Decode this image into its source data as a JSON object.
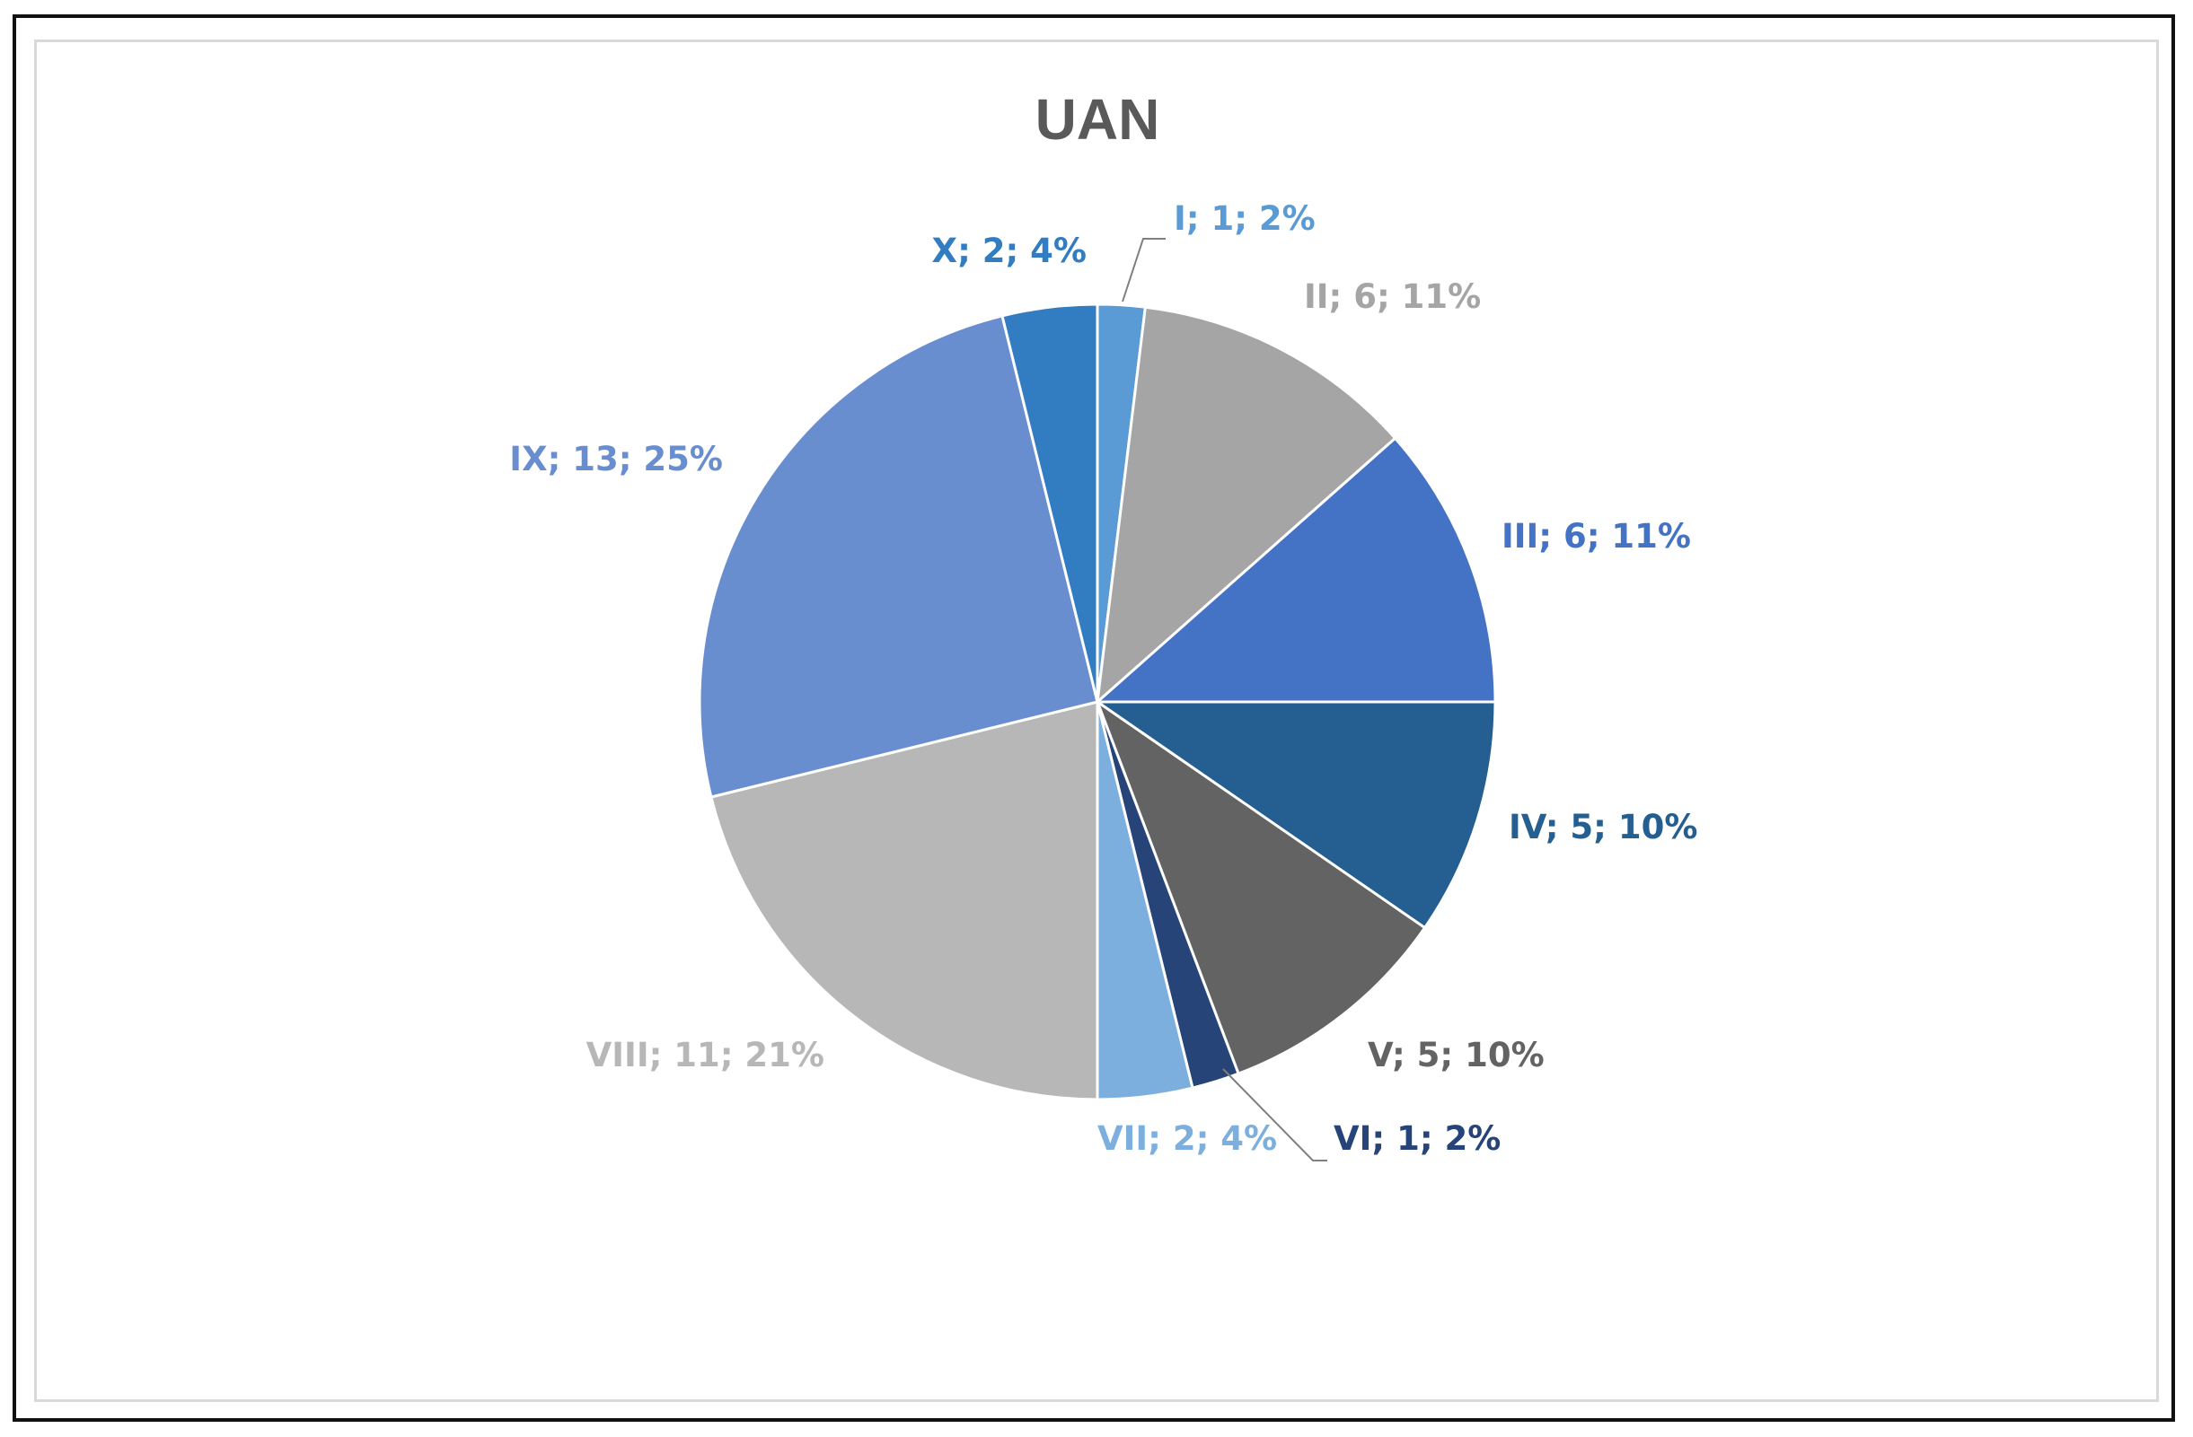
{
  "chart_data": {
    "type": "pie",
    "title": "UAN",
    "categories": [
      "I",
      "II",
      "III",
      "IV",
      "V",
      "VI",
      "VII",
      "VIII",
      "IX",
      "X"
    ],
    "values": [
      1,
      6,
      6,
      5,
      5,
      1,
      2,
      11,
      13,
      2
    ],
    "percent_labels": [
      "2%",
      "11%",
      "11%",
      "10%",
      "10%",
      "2%",
      "4%",
      "21%",
      "25%",
      "4%"
    ],
    "data_labels": [
      "I; 1; 2%",
      "II; 6; 11%",
      "III; 6; 11%",
      "IV; 5; 10%",
      "V; 5; 10%",
      "VI; 1; 2%",
      "VII; 2; 4%",
      "VIII; 11; 21%",
      "IX; 13; 25%",
      "X; 2; 4%"
    ],
    "colors": [
      "#5b9bd5",
      "#a5a5a5",
      "#4472c4",
      "#255e91",
      "#636363",
      "#264478",
      "#7cafdd",
      "#b7b7b7",
      "#698ed0",
      "#327dc2"
    ],
    "label_colors": [
      "#5b9bd5",
      "#a5a5a5",
      "#4472c4",
      "#255e91",
      "#636363",
      "#264478",
      "#7cafdd",
      "#b7b7b7",
      "#698ed0",
      "#327dc2"
    ],
    "start_angle_deg": 0,
    "direction": "clockwise",
    "legend": "none"
  }
}
